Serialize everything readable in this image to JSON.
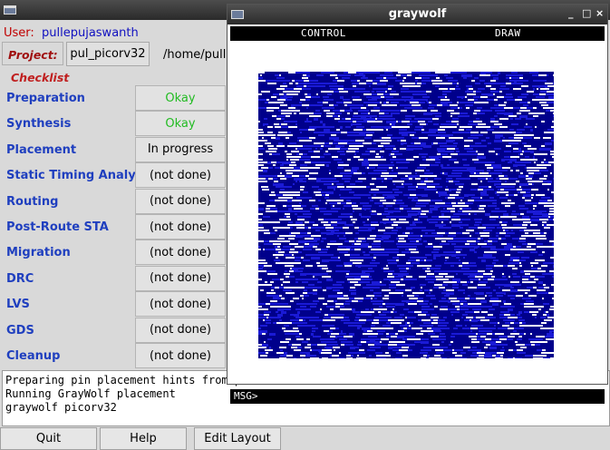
{
  "main": {
    "user_label": "User:",
    "user_value": "pullepujaswanth",
    "project_label": "Project:",
    "project_button": "pul_picorv32",
    "project_path": "/home/pulle",
    "checklist_label": "Checklist",
    "steps": [
      {
        "label": "Preparation",
        "status": "Okay",
        "status_color": "#22bb22"
      },
      {
        "label": "Synthesis",
        "status": "Okay",
        "status_color": "#22bb22"
      },
      {
        "label": "Placement",
        "status": "In progress",
        "status_color": "#000000"
      },
      {
        "label": "Static Timing Analysis",
        "status": "(not done)",
        "status_color": "#000000"
      },
      {
        "label": "Routing",
        "status": "(not done)",
        "status_color": "#000000"
      },
      {
        "label": "Post-Route STA",
        "status": "(not done)",
        "status_color": "#000000"
      },
      {
        "label": "Migration",
        "status": "(not done)",
        "status_color": "#000000"
      },
      {
        "label": "DRC",
        "status": "(not done)",
        "status_color": "#000000"
      },
      {
        "label": "LVS",
        "status": "(not done)",
        "status_color": "#000000"
      },
      {
        "label": "GDS",
        "status": "(not done)",
        "status_color": "#000000"
      },
      {
        "label": "Cleanup",
        "status": "(not done)",
        "status_color": "#000000"
      }
    ],
    "console_lines": [
      "Preparing pin placement hints from pi",
      "Running GrayWolf placement",
      "graywolf  picorv32"
    ],
    "buttons": {
      "quit": "Quit",
      "help": "Help",
      "edit_layout": "Edit Layout"
    }
  },
  "graywolf": {
    "title": "graywolf",
    "window_controls": [
      "_",
      "□",
      "×"
    ],
    "menu_control": "CONTROL",
    "menu_draw": "DRAW",
    "msg_prompt": "MSG>",
    "colors": {
      "cells": "#1a1ad6",
      "background": "#00008b",
      "gaps": "#ffffff"
    }
  }
}
